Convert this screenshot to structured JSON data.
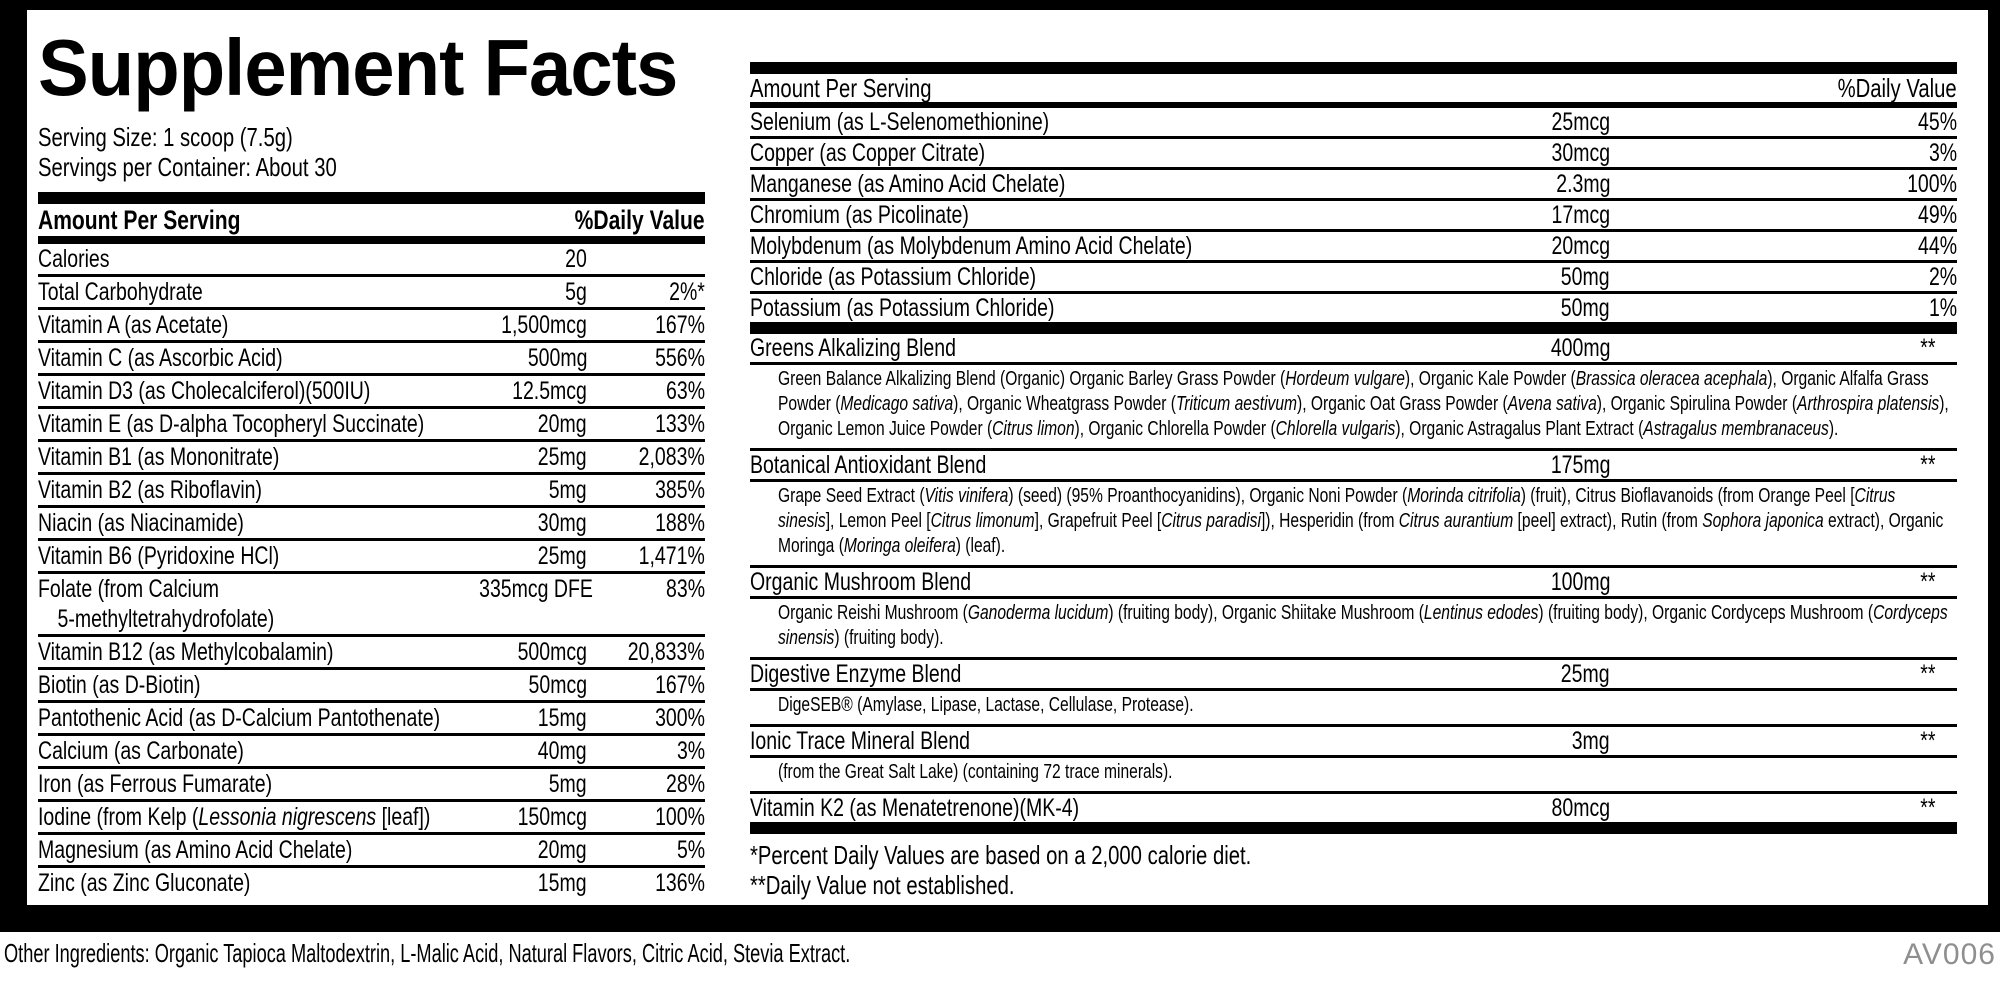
{
  "label": {
    "title": "Supplement Facts",
    "serving_size": "Serving Size: 1 scoop (7.5g)",
    "servings_per_container": "Servings per Container: About 30",
    "column_header": {
      "amount": "Amount Per Serving",
      "daily_value": "%Daily Value"
    }
  },
  "left_rows": [
    {
      "name": [
        {
          "t": "Calories"
        }
      ],
      "amount": "20",
      "dv": ""
    },
    {
      "name": [
        {
          "t": "Total Carbohydrate"
        }
      ],
      "amount": "5g",
      "dv": "2%*"
    },
    {
      "name": [
        {
          "t": "Vitamin A (as Acetate)"
        }
      ],
      "amount": "1,500mcg",
      "dv": "167%"
    },
    {
      "name": [
        {
          "t": "Vitamin C (as Ascorbic Acid)"
        }
      ],
      "amount": "500mg",
      "dv": "556%"
    },
    {
      "name": [
        {
          "t": "Vitamin D3 (as Cholecalciferol)(500IU)"
        }
      ],
      "amount": "12.5mcg",
      "dv": "63%"
    },
    {
      "name": [
        {
          "t": "Vitamin E (as D-alpha Tocopheryl Succinate)"
        }
      ],
      "amount": "20mg",
      "dv": "133%"
    },
    {
      "name": [
        {
          "t": "Vitamin B1 (as Mononitrate)"
        }
      ],
      "amount": "25mg",
      "dv": "2,083%"
    },
    {
      "name": [
        {
          "t": "Vitamin B2 (as Riboflavin)"
        }
      ],
      "amount": "5mg",
      "dv": "385%"
    },
    {
      "name": [
        {
          "t": "Niacin (as Niacinamide)"
        }
      ],
      "amount": "30mg",
      "dv": "188%"
    },
    {
      "name": [
        {
          "t": "Vitamin B6 (Pyridoxine HCl)"
        }
      ],
      "amount": "25mg",
      "dv": "1,471%"
    },
    {
      "name": [
        {
          "t": "Folate (from Calcium"
        }
      ],
      "name2": [
        {
          "t": "5-methyltetrahydrofolate)"
        }
      ],
      "amount": "335mcg DFE",
      "dv": "83%"
    },
    {
      "name": [
        {
          "t": "Vitamin B12 (as Methylcobalamin)"
        }
      ],
      "amount": "500mcg",
      "dv": "20,833%"
    },
    {
      "name": [
        {
          "t": "Biotin (as D-Biotin)"
        }
      ],
      "amount": "50mcg",
      "dv": "167%"
    },
    {
      "name": [
        {
          "t": "Pantothenic Acid (as D-Calcium Pantothenate)"
        }
      ],
      "amount": "15mg",
      "dv": "300%"
    },
    {
      "name": [
        {
          "t": "Calcium (as Carbonate)"
        }
      ],
      "amount": "40mg",
      "dv": "3%"
    },
    {
      "name": [
        {
          "t": "Iron (as Ferrous Fumarate)"
        }
      ],
      "amount": "5mg",
      "dv": "28%"
    },
    {
      "name": [
        {
          "t": "Iodine (from Kelp ("
        },
        {
          "t": "Lessonia nigrescens",
          "i": true
        },
        {
          "t": " [leaf])"
        }
      ],
      "amount": "150mcg",
      "dv": "100%"
    },
    {
      "name": [
        {
          "t": "Magnesium (as Amino Acid Chelate)"
        }
      ],
      "amount": "20mg",
      "dv": "5%"
    },
    {
      "name": [
        {
          "t": "Zinc (as Zinc Gluconate)"
        }
      ],
      "amount": "15mg",
      "dv": "136%"
    }
  ],
  "right_rows": [
    {
      "name": "Selenium (as L-Selenomethionine)",
      "amount": "25mcg",
      "dv": "45%"
    },
    {
      "name": "Copper (as Copper Citrate)",
      "amount": "30mcg",
      "dv": "3%"
    },
    {
      "name": "Manganese (as Amino Acid Chelate)",
      "amount": "2.3mg",
      "dv": "100%"
    },
    {
      "name": "Chromium (as Picolinate)",
      "amount": "17mcg",
      "dv": "49%"
    },
    {
      "name": "Molybdenum (as Molybdenum Amino Acid Chelate)",
      "amount": "20mcg",
      "dv": "44%"
    },
    {
      "name": "Chloride (as Potassium Chloride)",
      "amount": "50mg",
      "dv": "2%"
    },
    {
      "name": "Potassium (as Potassium Chloride)",
      "amount": "50mg",
      "dv": "1%"
    }
  ],
  "blends": [
    {
      "name": "Greens Alkalizing Blend",
      "amount": "400mg",
      "dv": "**",
      "desc": [
        {
          "t": "Green Balance Alkalizing Blend (Organic) Organic Barley Grass Powder ("
        },
        {
          "t": "Hordeum vulgare",
          "i": true
        },
        {
          "t": "), Organic Kale Powder ("
        },
        {
          "t": "Brassica oleracea acephala",
          "i": true
        },
        {
          "t": "), Organic Alfalfa Grass Powder ("
        },
        {
          "t": "Medicago sativa",
          "i": true
        },
        {
          "t": "), Organic Wheatgrass Powder ("
        },
        {
          "t": "Triticum aestivum",
          "i": true
        },
        {
          "t": "), Organic Oat Grass Powder ("
        },
        {
          "t": "Avena sativa",
          "i": true
        },
        {
          "t": "), Organic Spirulina Powder ("
        },
        {
          "t": "Arthrospira platensis",
          "i": true
        },
        {
          "t": "), Organic Lemon Juice Powder ("
        },
        {
          "t": "Citrus limon",
          "i": true
        },
        {
          "t": "), Organic Chlorella Powder ("
        },
        {
          "t": "Chlorella vulgaris",
          "i": true
        },
        {
          "t": "), Organic Astragalus Plant Extract ("
        },
        {
          "t": "Astragalus membranaceus",
          "i": true
        },
        {
          "t": ")."
        }
      ]
    },
    {
      "name": "Botanical Antioxidant Blend",
      "amount": "175mg",
      "dv": "**",
      "desc": [
        {
          "t": "Grape Seed Extract ("
        },
        {
          "t": "Vitis vinifera",
          "i": true
        },
        {
          "t": ") (seed) (95% Proanthocyanidins), Organic Noni Powder ("
        },
        {
          "t": "Morinda citrifolia",
          "i": true
        },
        {
          "t": ") (fruit), Citrus Bioflavanoids (from Orange Peel ["
        },
        {
          "t": "Citrus sinesis",
          "i": true
        },
        {
          "t": "], Lemon Peel ["
        },
        {
          "t": "Citrus limonum",
          "i": true
        },
        {
          "t": "], Grapefruit Peel ["
        },
        {
          "t": "Citrus paradisi",
          "i": true
        },
        {
          "t": "]), Hesperidin (from "
        },
        {
          "t": "Citrus aurantium",
          "i": true
        },
        {
          "t": " [peel] extract), Rutin (from "
        },
        {
          "t": "Sophora japonica",
          "i": true
        },
        {
          "t": " extract), Organic Moringa ("
        },
        {
          "t": "Moringa oleifera",
          "i": true
        },
        {
          "t": ") (leaf)."
        }
      ]
    },
    {
      "name": "Organic Mushroom Blend",
      "amount": "100mg",
      "dv": "**",
      "desc": [
        {
          "t": "Organic Reishi Mushroom ("
        },
        {
          "t": "Ganoderma lucidum",
          "i": true
        },
        {
          "t": ") (fruiting body), Organic Shiitake Mushroom ("
        },
        {
          "t": "Lentinus edodes",
          "i": true
        },
        {
          "t": ") (fruiting body), Organic Cordyceps Mushroom ("
        },
        {
          "t": "Cordyceps sinensis",
          "i": true
        },
        {
          "t": ") (fruiting body)."
        }
      ]
    },
    {
      "name": "Digestive Enzyme Blend",
      "amount": "25mg",
      "dv": "**",
      "desc": [
        {
          "t": "DigeSEB® (Amylase, Lipase, Lactase, Cellulase, Protease)."
        }
      ]
    },
    {
      "name": "Ionic Trace Mineral Blend",
      "amount": "3mg",
      "dv": "**",
      "desc": [
        {
          "t": "(from the Great Salt Lake) (containing 72 trace minerals)."
        }
      ]
    }
  ],
  "vitamin_k2": {
    "name": "Vitamin K2 (as Menatetrenone)(MK-4)",
    "amount": "80mcg",
    "dv": "**"
  },
  "footnotes": [
    "*Percent Daily Values are based on a 2,000 calorie diet.",
    "**Daily Value not established."
  ],
  "footer": {
    "other_ingredients": "Other Ingredients: Organic Tapioca Maltodextrin, L-Malic Acid, Natural Flavors, Citric Acid, Stevia Extract.",
    "code": "AV006"
  },
  "colors": {
    "text": "#000000",
    "code_gray": "#8f8f8f",
    "background": "#ffffff"
  }
}
